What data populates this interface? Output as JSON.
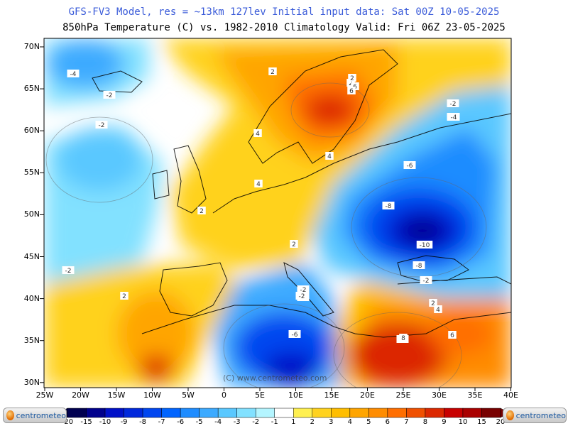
{
  "header": {
    "line1": "GFS-FV3 Model, res = ~13km 127lev    Initial input data: Sat 00Z 10-05-2025",
    "line2": "850hPa Temperature (C) vs. 1982-2010 Climatology  Valid: Fri 06Z 23-05-2025"
  },
  "map": {
    "lat_labels": [
      "70N",
      "65N",
      "60N",
      "55N",
      "50N",
      "45N",
      "40N",
      "35N",
      "30N"
    ],
    "lon_labels": [
      "25W",
      "20W",
      "15W",
      "10W",
      "5W",
      "0",
      "5E",
      "10E",
      "15E",
      "20E",
      "25E",
      "30E",
      "35E",
      "40E"
    ],
    "contour_labels": [
      "-4",
      "-2",
      "-2",
      "-2",
      "2",
      "2",
      "2",
      "4",
      "4",
      "4",
      "2",
      "2",
      "-2",
      "2",
      "-2",
      "-4",
      "-6",
      "-8",
      "-10",
      "-8",
      "-2",
      "-2",
      "-2",
      "-6",
      "6",
      "2",
      "4",
      "6",
      "8",
      "6",
      "-4",
      "-2"
    ],
    "watermark": "(C) www.centrometeo.com"
  },
  "colorbar": {
    "labels": [
      "-20",
      "-15",
      "-10",
      "-9",
      "-8",
      "-7",
      "-6",
      "-5",
      "-4",
      "-3",
      "-2",
      "-1",
      "1",
      "2",
      "3",
      "4",
      "5",
      "6",
      "7",
      "8",
      "9",
      "10",
      "15",
      "20"
    ],
    "colors": [
      "#000050",
      "#00008c",
      "#0010c8",
      "#0028dc",
      "#0046f0",
      "#0064ff",
      "#1e8cff",
      "#3caaff",
      "#5ac8ff",
      "#82e1ff",
      "#b4f5ff",
      "#ffffff",
      "#fff050",
      "#ffd21e",
      "#ffbe00",
      "#ffa500",
      "#ff8c00",
      "#ff6e00",
      "#f05000",
      "#dc2800",
      "#c80000",
      "#aa0000",
      "#780000"
    ]
  },
  "logos": {
    "left": "centrometeo",
    "right": "centrometeo"
  }
}
